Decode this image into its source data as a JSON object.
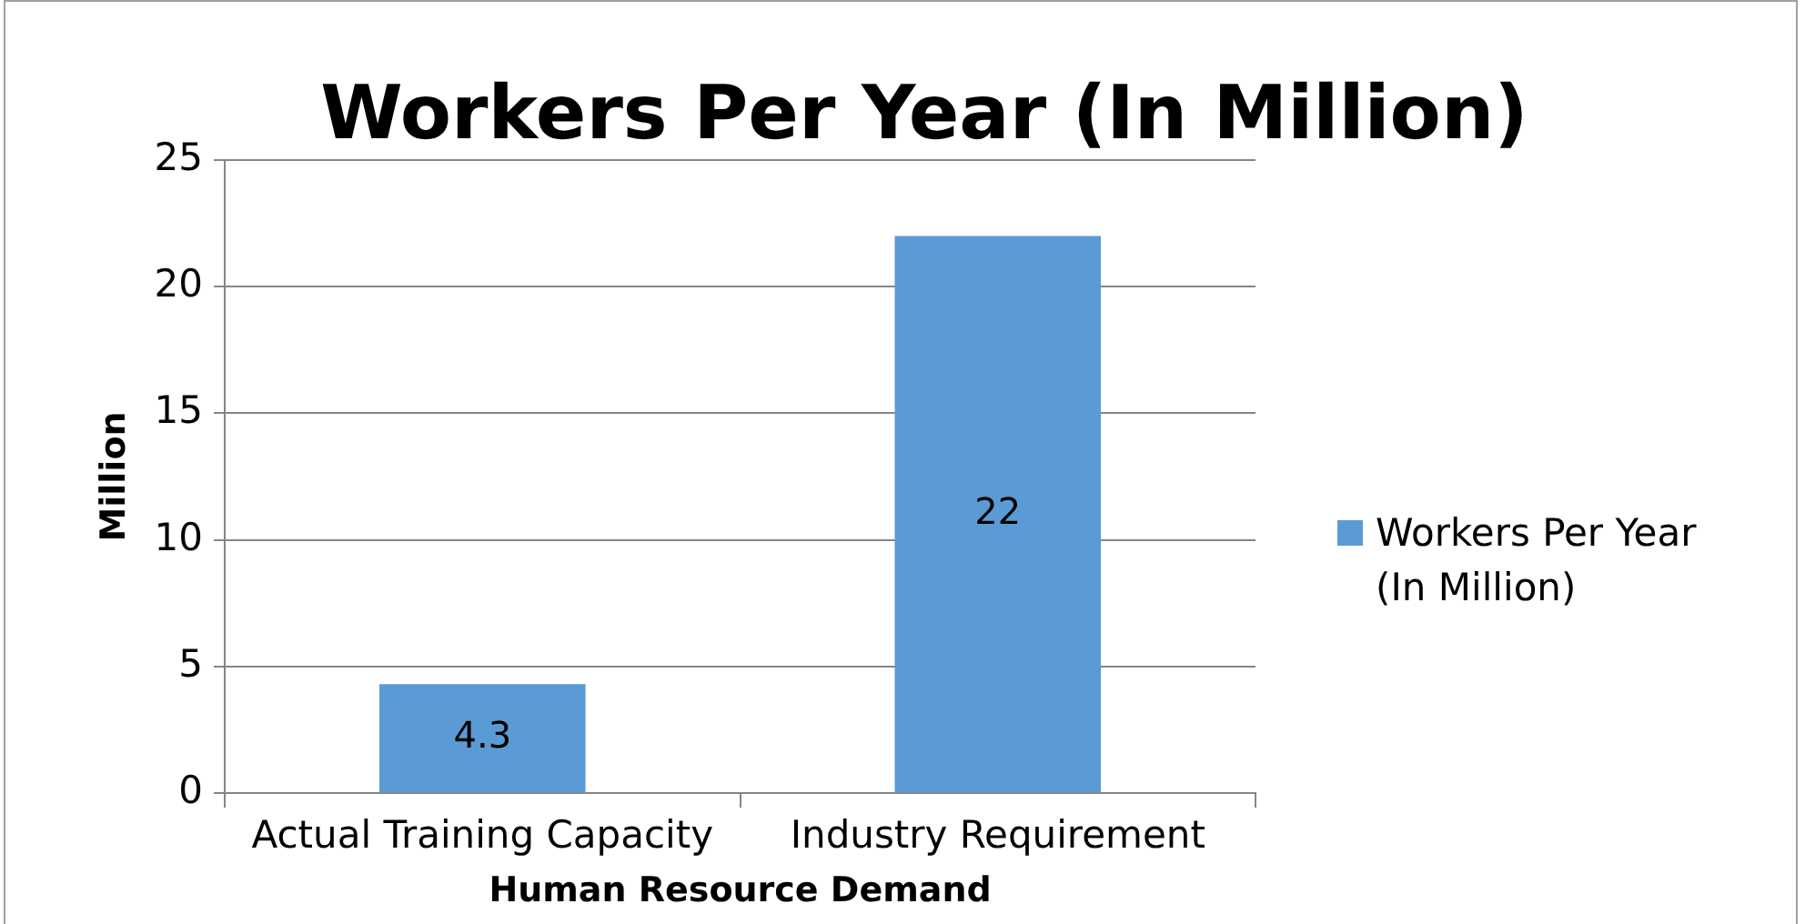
{
  "chart_data": {
    "type": "bar",
    "title": "Workers Per Year (In Million)",
    "xlabel": "Human Resource Demand",
    "ylabel": "Million",
    "categories": [
      "Actual Training Capacity",
      "Industry Requirement"
    ],
    "series": [
      {
        "name": "Workers Per Year (In Million)",
        "color": "#5b9bd5",
        "values": [
          4.3,
          22
        ]
      }
    ],
    "ylim": [
      0,
      25
    ],
    "yticks": [
      0,
      5,
      10,
      15,
      20,
      25
    ],
    "grid": "y",
    "legend": "right",
    "data_labels": true
  }
}
